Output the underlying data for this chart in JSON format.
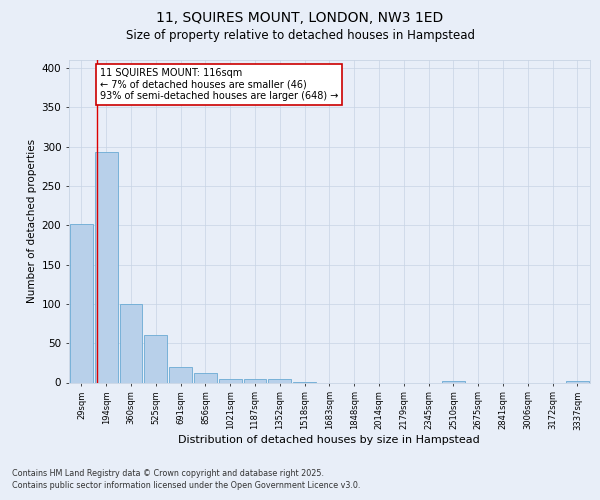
{
  "title_line1": "11, SQUIRES MOUNT, LONDON, NW3 1ED",
  "title_line2": "Size of property relative to detached houses in Hampstead",
  "xlabel": "Distribution of detached houses by size in Hampstead",
  "ylabel": "Number of detached properties",
  "bin_labels": [
    "29sqm",
    "194sqm",
    "360sqm",
    "525sqm",
    "691sqm",
    "856sqm",
    "1021sqm",
    "1187sqm",
    "1352sqm",
    "1518sqm",
    "1683sqm",
    "1848sqm",
    "2014sqm",
    "2179sqm",
    "2345sqm",
    "2510sqm",
    "2675sqm",
    "2841sqm",
    "3006sqm",
    "3172sqm",
    "3337sqm"
  ],
  "bar_values": [
    202,
    293,
    100,
    60,
    20,
    12,
    5,
    4,
    4,
    1,
    0,
    0,
    0,
    0,
    0,
    2,
    0,
    0,
    0,
    0,
    2
  ],
  "bar_color": "#b8d0ea",
  "bar_edge_color": "#6aaad4",
  "grid_color": "#c8d4e4",
  "bg_color": "#e8eef8",
  "annotation_text": "11 SQUIRES MOUNT: 116sqm\n← 7% of detached houses are smaller (46)\n93% of semi-detached houses are larger (648) →",
  "annotation_box_facecolor": "#ffffff",
  "annotation_box_edgecolor": "#cc0000",
  "footnote_line1": "Contains HM Land Registry data © Crown copyright and database right 2025.",
  "footnote_line2": "Contains public sector information licensed under the Open Government Licence v3.0.",
  "ylim_max": 410,
  "yticks": [
    0,
    50,
    100,
    150,
    200,
    250,
    300,
    350,
    400
  ],
  "property_line_xval": 0.62,
  "red_line_color": "#dd0000"
}
